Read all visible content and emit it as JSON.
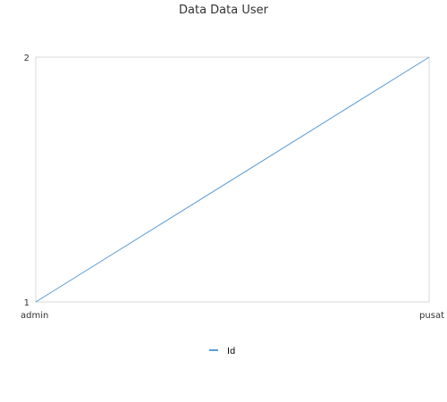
{
  "chart_data": {
    "type": "line",
    "title": "Data Data User",
    "categories": [
      "admin",
      "pusat"
    ],
    "series": [
      {
        "name": "Id",
        "values": [
          1,
          2
        ],
        "color": "#5b9bd5"
      }
    ],
    "ylim": [
      1,
      2
    ],
    "yticks": [
      "1",
      "2"
    ],
    "legend_position": "bottom",
    "grid": false,
    "frame_color": "#d9d9d9"
  }
}
